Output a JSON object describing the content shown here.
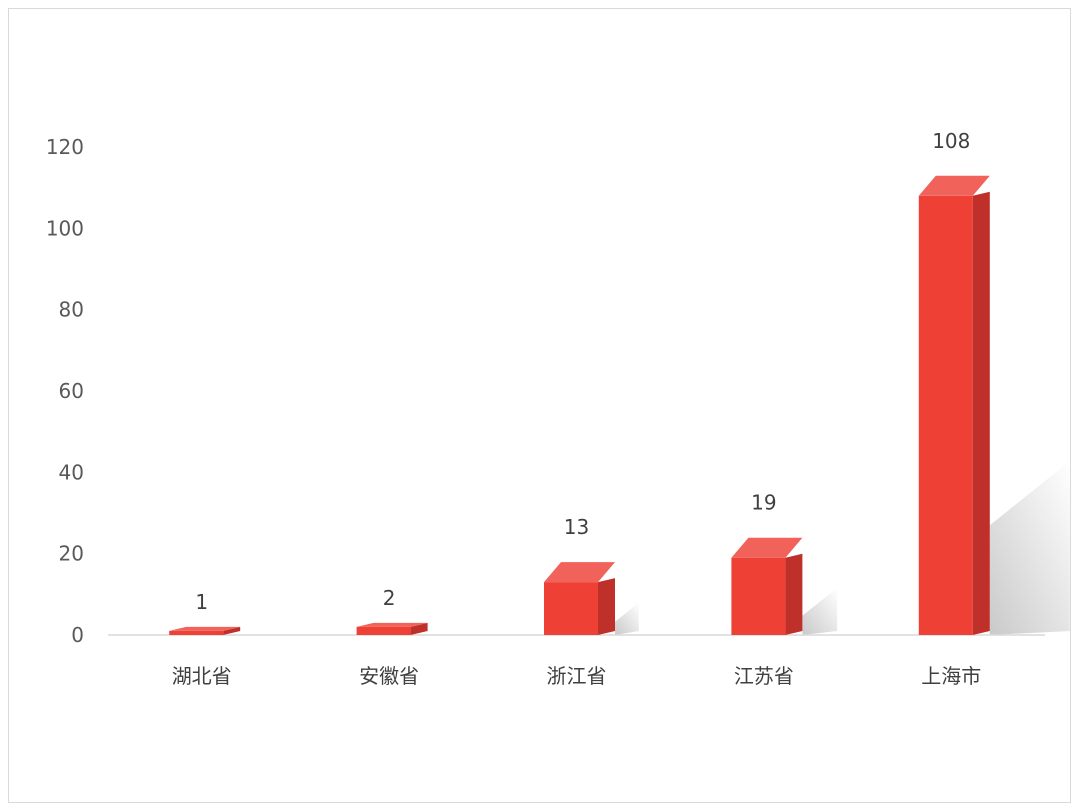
{
  "chart_data": {
    "type": "bar",
    "categories": [
      "湖北省",
      "安徽省",
      "浙江省",
      "江苏省",
      "上海市"
    ],
    "values": [
      1,
      2,
      13,
      19,
      108
    ],
    "data_labels": [
      "1",
      "2",
      "13",
      "19",
      "108"
    ],
    "y_ticks": [
      "0",
      "20",
      "40",
      "60",
      "80",
      "100",
      "120"
    ],
    "ylim": [
      0,
      120
    ],
    "grid": false,
    "legend": "none",
    "colors": {
      "front": "#ee4035",
      "side": "#c0302a",
      "top": "#f0625a",
      "shadow": "#9e9e9e"
    }
  }
}
